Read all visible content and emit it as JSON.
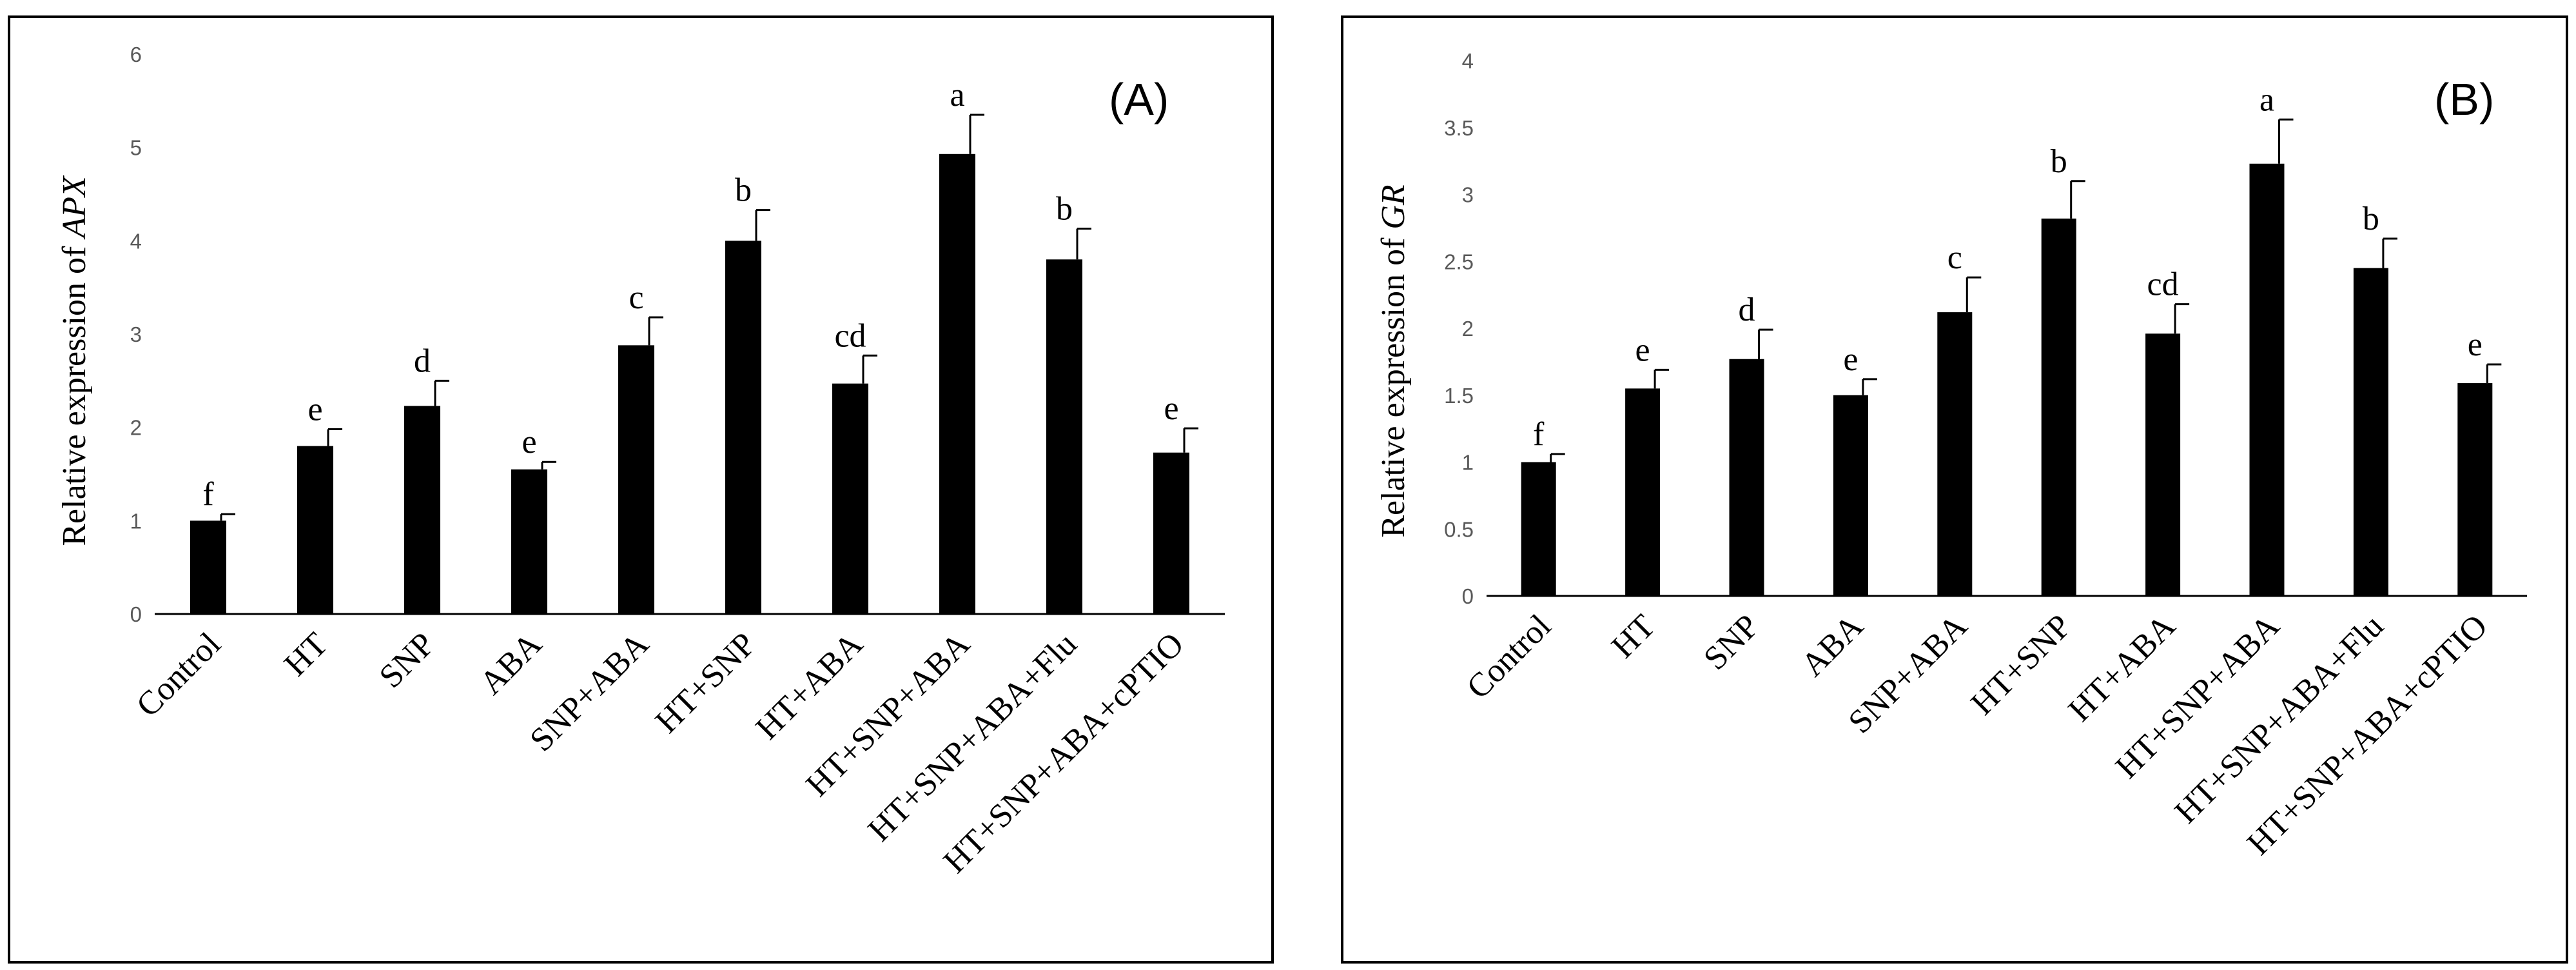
{
  "chart_data": [
    {
      "type": "bar",
      "panel_label": "(A)",
      "ylabel_prefix": "Relative expression of ",
      "ylabel_gene": "APX",
      "ylim": [
        0,
        6
      ],
      "yticks": [
        "0",
        "1",
        "2",
        "3",
        "4",
        "5",
        "6"
      ],
      "grid": false,
      "categories": [
        "Control",
        "HT",
        "SNP",
        "ABA",
        "SNP+ABA",
        "HT+SNP",
        "HT+ABA",
        "HT+SNP+ABA",
        "HT+SNP+ABA+Flu",
        "HT+SNP+ABA+cPTIO"
      ],
      "values": [
        1.0,
        1.8,
        2.23,
        1.55,
        2.88,
        4.0,
        2.47,
        4.93,
        3.8,
        1.73
      ],
      "errors": [
        0.07,
        0.18,
        0.27,
        0.08,
        0.3,
        0.33,
        0.3,
        0.42,
        0.33,
        0.26
      ],
      "letters": [
        "f",
        "e",
        "d",
        "e",
        "c",
        "b",
        "cd",
        "a",
        "b",
        "e"
      ]
    },
    {
      "type": "bar",
      "panel_label": "(B)",
      "ylabel_prefix": "Relative expression of ",
      "ylabel_gene": "GR",
      "ylim": [
        0,
        4
      ],
      "yticks": [
        "0",
        "0.5",
        "1",
        "1.5",
        "2",
        "2.5",
        "3",
        "3.5",
        "4"
      ],
      "grid": false,
      "categories": [
        "Control",
        "HT",
        "SNP",
        "ABA",
        "SNP+ABA",
        "HT+SNP",
        "HT+ABA",
        "HT+SNP+ABA",
        "HT+SNP+ABA+Flu",
        "HT+SNP+ABA+cPTIO"
      ],
      "values": [
        1.0,
        1.55,
        1.77,
        1.5,
        2.12,
        2.82,
        1.96,
        3.23,
        2.45,
        1.59
      ],
      "errors": [
        0.06,
        0.14,
        0.22,
        0.12,
        0.26,
        0.28,
        0.22,
        0.33,
        0.22,
        0.14
      ],
      "letters": [
        "f",
        "e",
        "d",
        "e",
        "c",
        "b",
        "cd",
        "a",
        "b",
        "e"
      ]
    }
  ]
}
